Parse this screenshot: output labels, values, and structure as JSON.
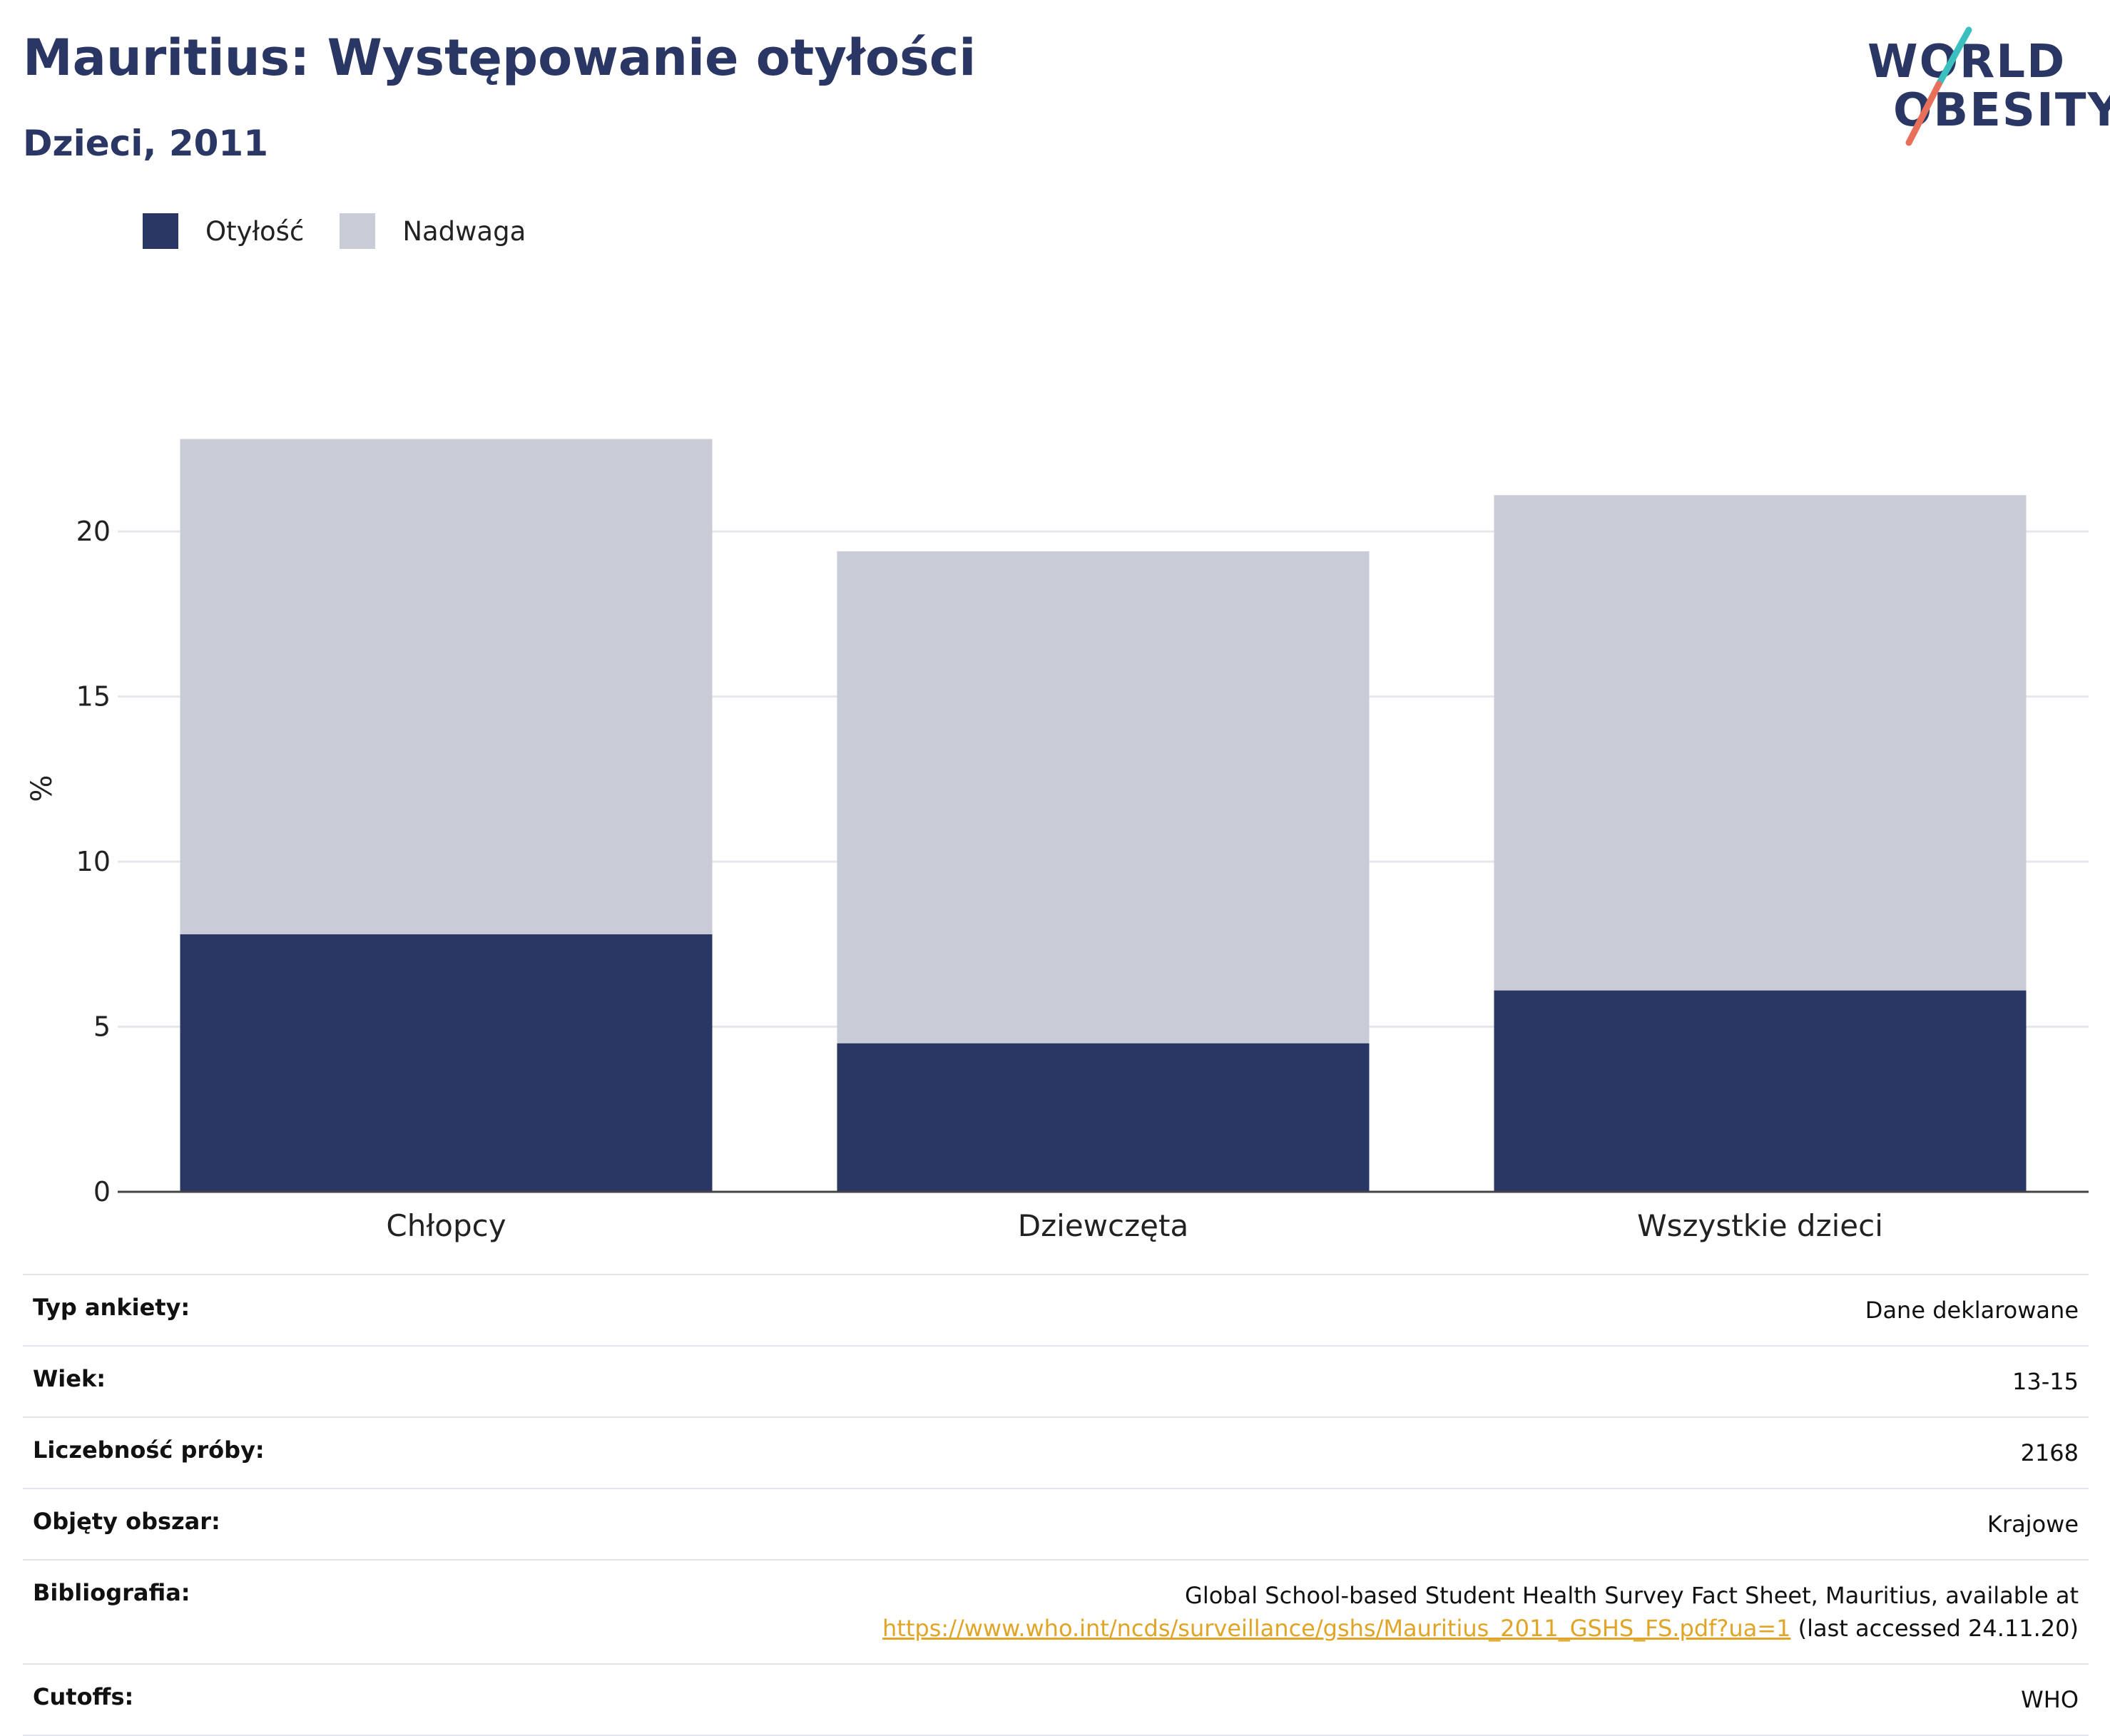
{
  "header": {
    "title": "Mauritius: Występowanie otyłości",
    "subtitle": "Dzieci, 2011"
  },
  "logo": {
    "line1": "WORLD",
    "line2": "OBESITY",
    "colors": {
      "text": "#2a3764",
      "slash_top": "#3bbfbf",
      "slash_bottom": "#e8705a"
    }
  },
  "legend": [
    {
      "label": "Otyłość",
      "color": "#2a3764"
    },
    {
      "label": "Nadwaga",
      "color": "#c9cbd6"
    }
  ],
  "chart_data": {
    "type": "bar",
    "stacked": true,
    "categories": [
      "Chłopcy",
      "Dziewczęta",
      "Wszystkie dzieci"
    ],
    "series": [
      {
        "name": "Otyłość",
        "values": [
          7.8,
          4.5,
          6.1
        ],
        "color": "#2a3764"
      },
      {
        "name": "Nadwaga",
        "values": [
          15.0,
          14.9,
          15.0
        ],
        "color": "#c9cbd6"
      }
    ],
    "ylabel": "%",
    "ylim": [
      0,
      24
    ],
    "yticks": [
      0,
      5,
      10,
      15,
      20
    ],
    "grid": true,
    "legend_position": "top-left"
  },
  "info": {
    "rows": [
      {
        "label": "Typ ankiety:",
        "value": "Dane deklarowane"
      },
      {
        "label": "Wiek:",
        "value": "13-15"
      },
      {
        "label": "Liczebność próby:",
        "value": "2168"
      },
      {
        "label": "Objęty obszar:",
        "value": "Krajowe"
      },
      {
        "label": "Bibliografia:",
        "value": "Global School-based Student Health Survey Fact Sheet, Mauritius, available at",
        "link": "https://www.who.int/ncds/surveillance/gshs/Mauritius_2011_GSHS_FS.pdf?ua=1",
        "suffix": " (last accessed 24.11.20)"
      },
      {
        "label": "Cutoffs:",
        "value": "WHO"
      }
    ]
  }
}
